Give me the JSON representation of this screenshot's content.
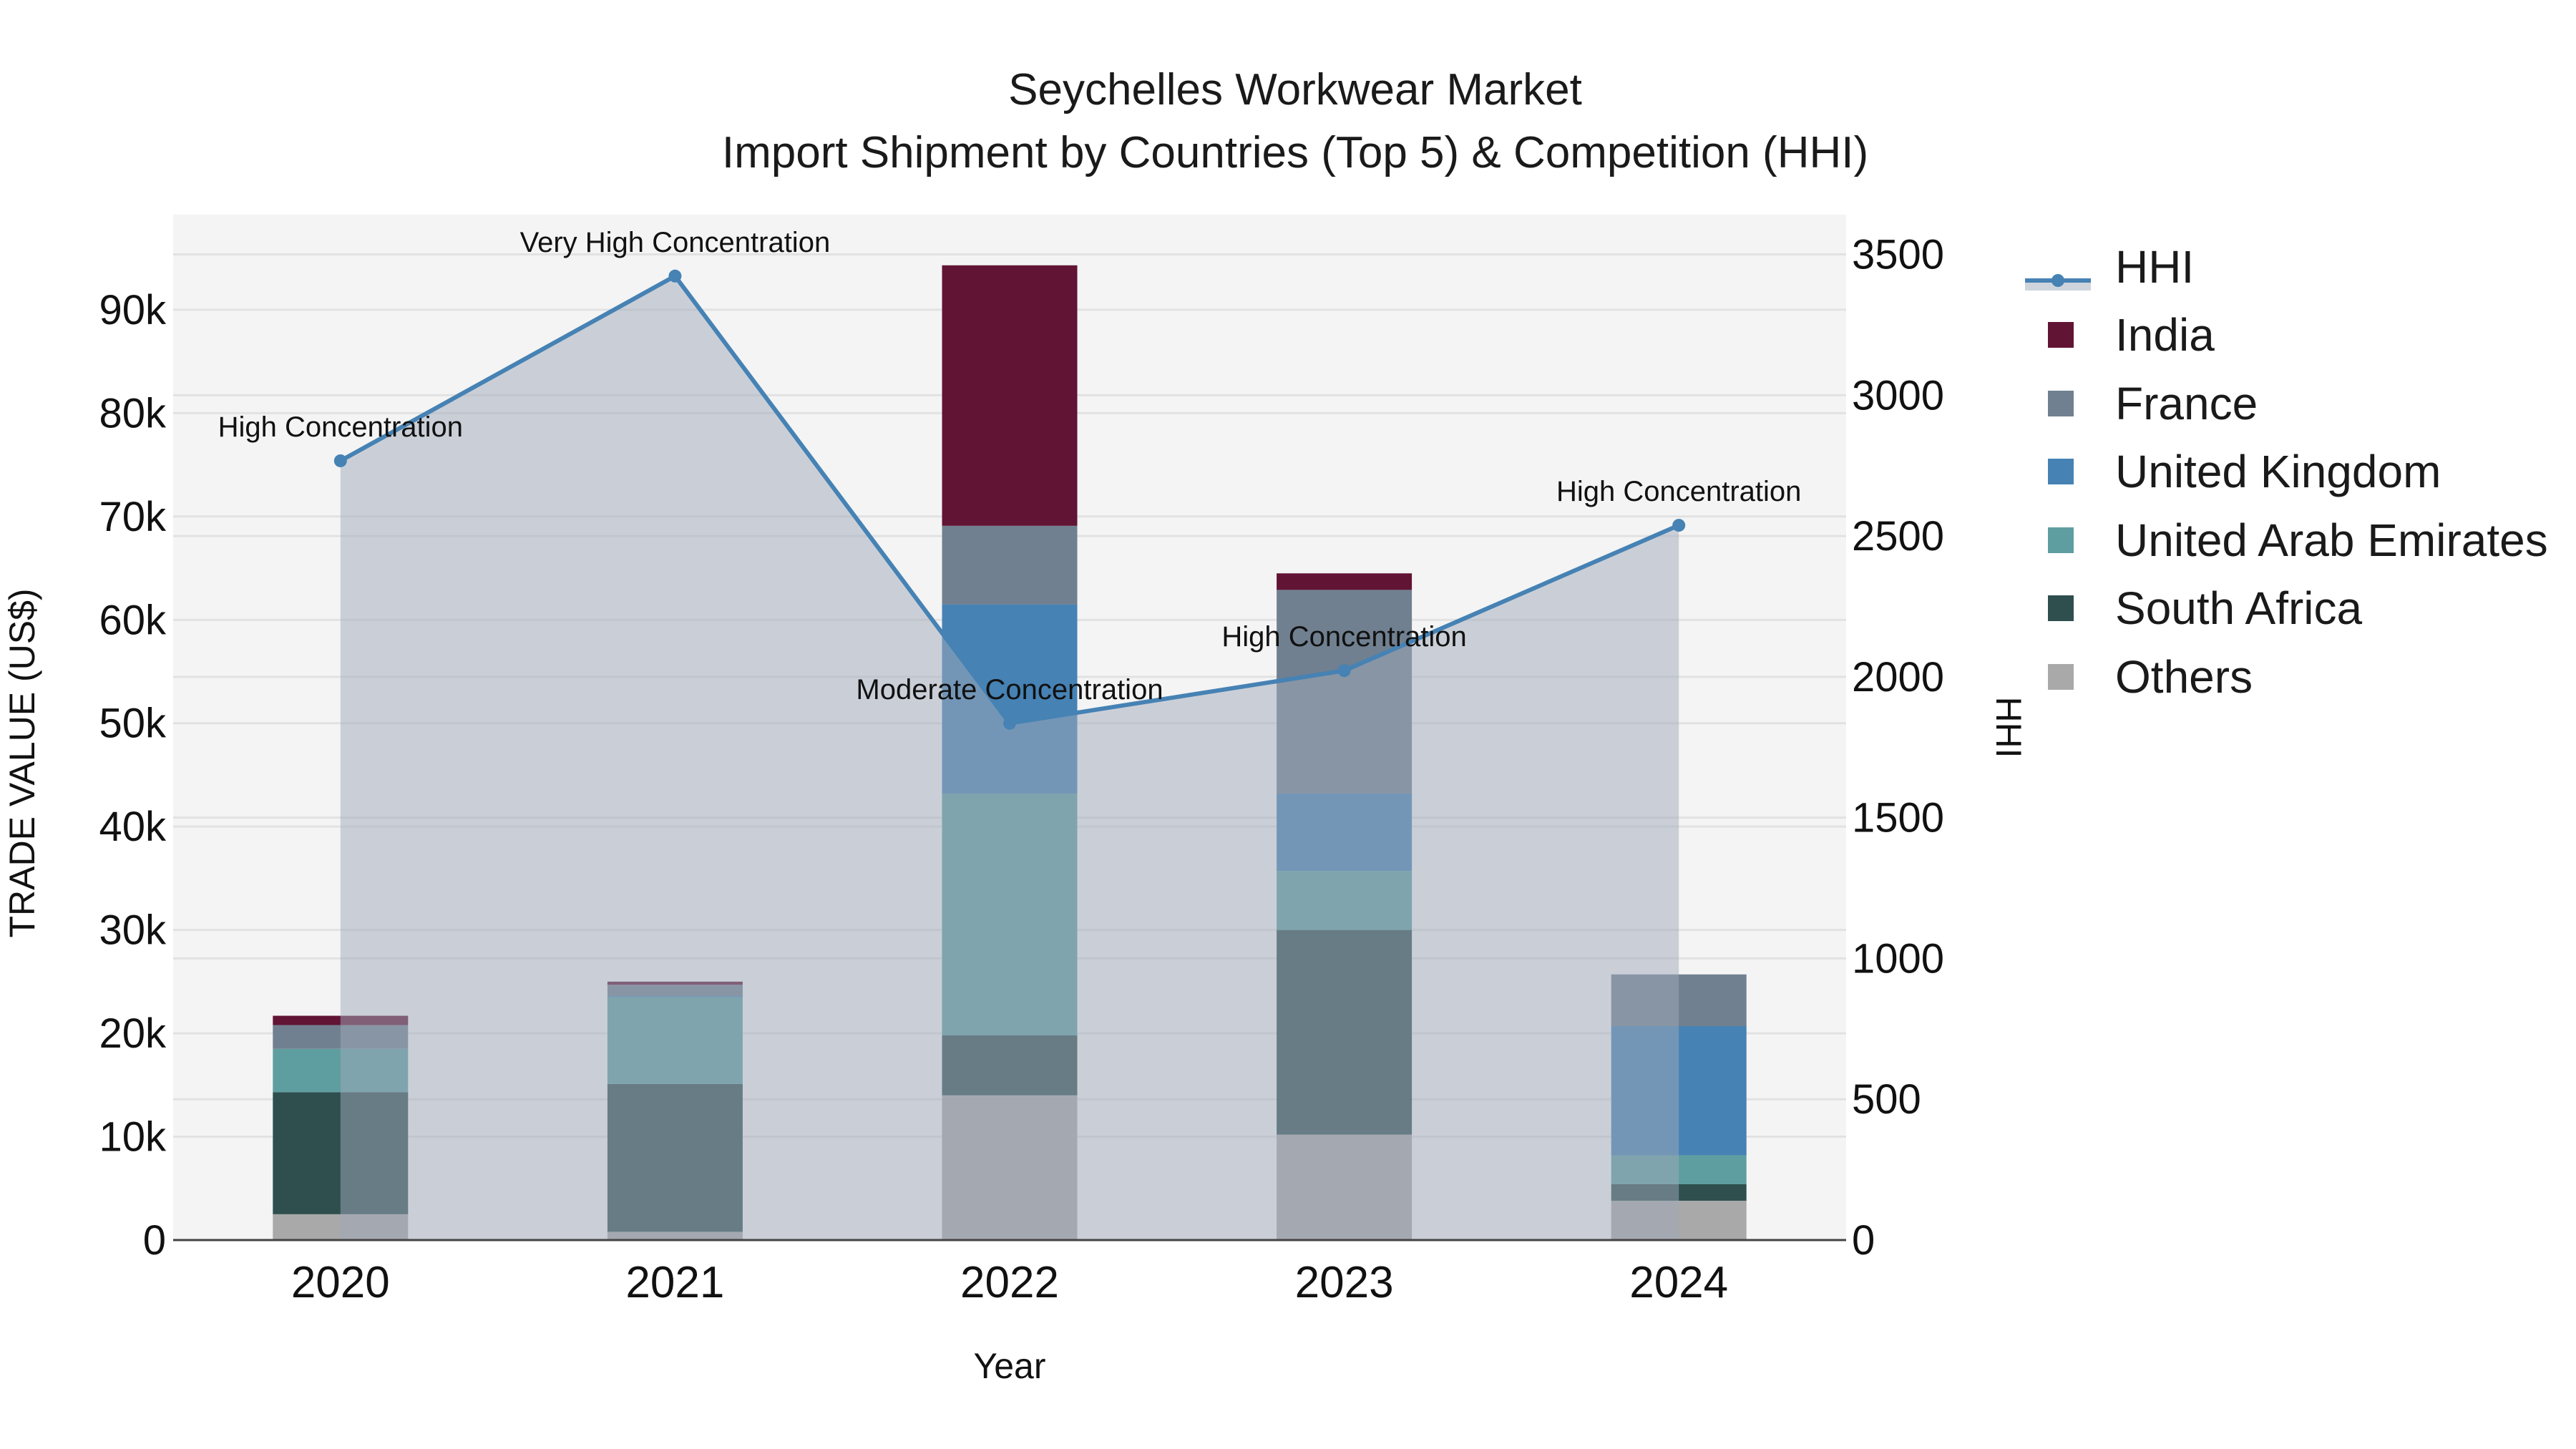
{
  "title": {
    "line1": "Seychelles Workwear Market",
    "line2": "Import Shipment by Countries (Top 5) & Competition (HHI)"
  },
  "axes": {
    "x_label": "Year",
    "y_left_label": "TRADE VALUE (US$)",
    "y_right_label": "HHI",
    "y_left_ticks": [
      "0",
      "10k",
      "20k",
      "30k",
      "40k",
      "50k",
      "60k",
      "70k",
      "80k",
      "90k"
    ],
    "y_right_ticks": [
      "0",
      "500",
      "1000",
      "1500",
      "2000",
      "2500",
      "3000",
      "3500"
    ]
  },
  "legend": [
    {
      "name": "HHI",
      "color": "#4682b4",
      "kind": "line"
    },
    {
      "name": "India",
      "color": "#611434",
      "kind": "bar"
    },
    {
      "name": "France",
      "color": "#708090",
      "kind": "bar"
    },
    {
      "name": "United Kingdom",
      "color": "#4682b4",
      "kind": "bar"
    },
    {
      "name": "United Arab Emirates",
      "color": "#5f9ea0",
      "kind": "bar"
    },
    {
      "name": "South Africa",
      "color": "#2f4f4f",
      "kind": "bar"
    },
    {
      "name": "Others",
      "color": "#a9a9a9",
      "kind": "bar"
    }
  ],
  "chart_data": {
    "type": "bar",
    "stacked": true,
    "title": "Seychelles Workwear Market — Import Shipment by Countries (Top 5) & Competition (HHI)",
    "xlabel": "Year",
    "ylabel": "TRADE VALUE (US$)",
    "y2label": "HHI",
    "categories": [
      "2020",
      "2021",
      "2022",
      "2023",
      "2024"
    ],
    "ylim": [
      0,
      99200
    ],
    "y2lim": [
      0,
      3641
    ],
    "grid": true,
    "legend_position": "right",
    "series": [
      {
        "name": "Others",
        "color": "#a9a9a9",
        "values": [
          2500,
          800,
          14000,
          10200,
          3800
        ]
      },
      {
        "name": "South Africa",
        "color": "#2f4f4f",
        "values": [
          11800,
          14300,
          5800,
          19800,
          1600
        ]
      },
      {
        "name": "United Arab Emirates",
        "color": "#5f9ea0",
        "values": [
          4200,
          8400,
          23400,
          5700,
          2800
        ]
      },
      {
        "name": "United Kingdom",
        "color": "#4682b4",
        "values": [
          0,
          100,
          18300,
          7500,
          12500
        ]
      },
      {
        "name": "France",
        "color": "#708090",
        "values": [
          2300,
          1100,
          7600,
          19700,
          5000
        ]
      },
      {
        "name": "India",
        "color": "#611434",
        "values": [
          900,
          300,
          25200,
          1600,
          0
        ]
      }
    ],
    "line_series": {
      "name": "HHI",
      "axis": "right",
      "color": "#4682b4",
      "fill": "tozeroy",
      "values": [
        2767,
        3423,
        1835,
        2022,
        2538
      ],
      "annotations": [
        "High Concentration",
        "Very High Concentration",
        "Moderate Concentration",
        "High Concentration",
        "High Concentration"
      ]
    }
  }
}
